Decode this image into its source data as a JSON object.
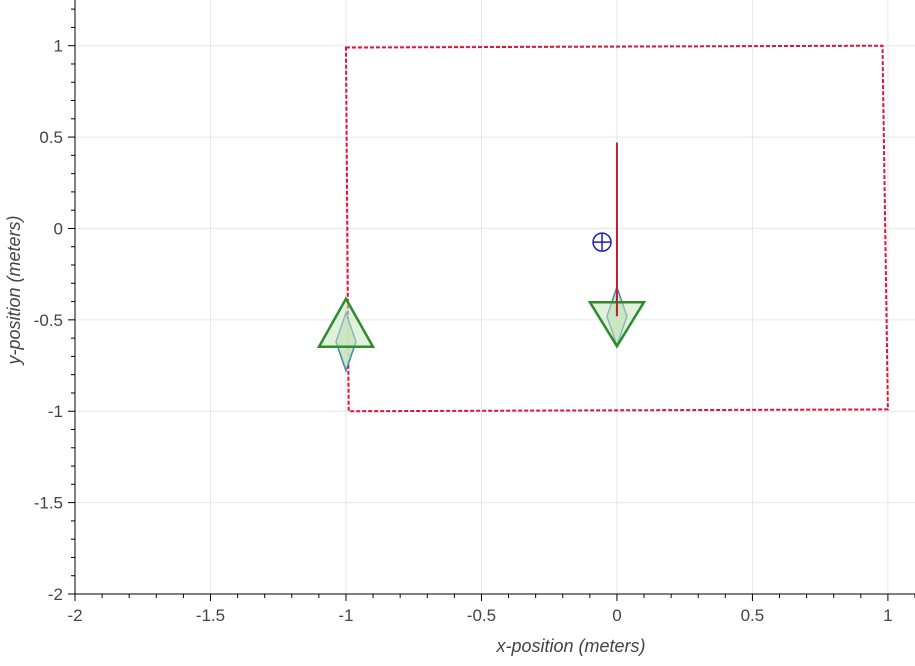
{
  "chart_data": {
    "type": "scatter",
    "xlabel": "x-position (meters)",
    "ylabel": "y-position (meters)",
    "xlim": [
      -2,
      1.1
    ],
    "ylim": [
      -2,
      1.25
    ],
    "xticks": [
      -2,
      -1.5,
      -1,
      -0.5,
      0,
      0.5,
      1
    ],
    "xtick_labels": [
      "-2",
      "-1.5",
      "-1",
      "-0.5",
      "0",
      "0.5",
      "1"
    ],
    "yticks": [
      -2,
      -1.5,
      -1,
      -0.5,
      0,
      0.5,
      1
    ],
    "ytick_labels": [
      "-2",
      "-1.5",
      "-1",
      "-0.5",
      "0",
      "0.5",
      "1"
    ],
    "grid": true,
    "boundary": {
      "style": "dashed",
      "color": "#dc143c",
      "corners": [
        [
          -1.0,
          0.99
        ],
        [
          0.98,
          1.0
        ],
        [
          1.0,
          -0.99
        ],
        [
          -0.99,
          -1.0
        ]
      ]
    },
    "robots": [
      {
        "position": [
          -1.0,
          -0.62
        ],
        "heading": "up",
        "triangle_color": "#2e8b2e",
        "diamond_color": "#4682b4",
        "fill_color": "#c8e6c0"
      },
      {
        "position": [
          0.0,
          -0.48
        ],
        "heading": "down",
        "triangle_color": "#2e8b2e",
        "diamond_color": "#4682b4",
        "fill_color": "#c8e6c0"
      }
    ],
    "goal_marker": {
      "position": [
        -0.055,
        -0.075
      ],
      "symbol": "circled-plus",
      "color": "#1f1fbf"
    },
    "segments": [
      {
        "from": [
          0.0,
          0.47
        ],
        "to": [
          0.0,
          -0.48
        ],
        "color": "#b22234"
      }
    ]
  }
}
